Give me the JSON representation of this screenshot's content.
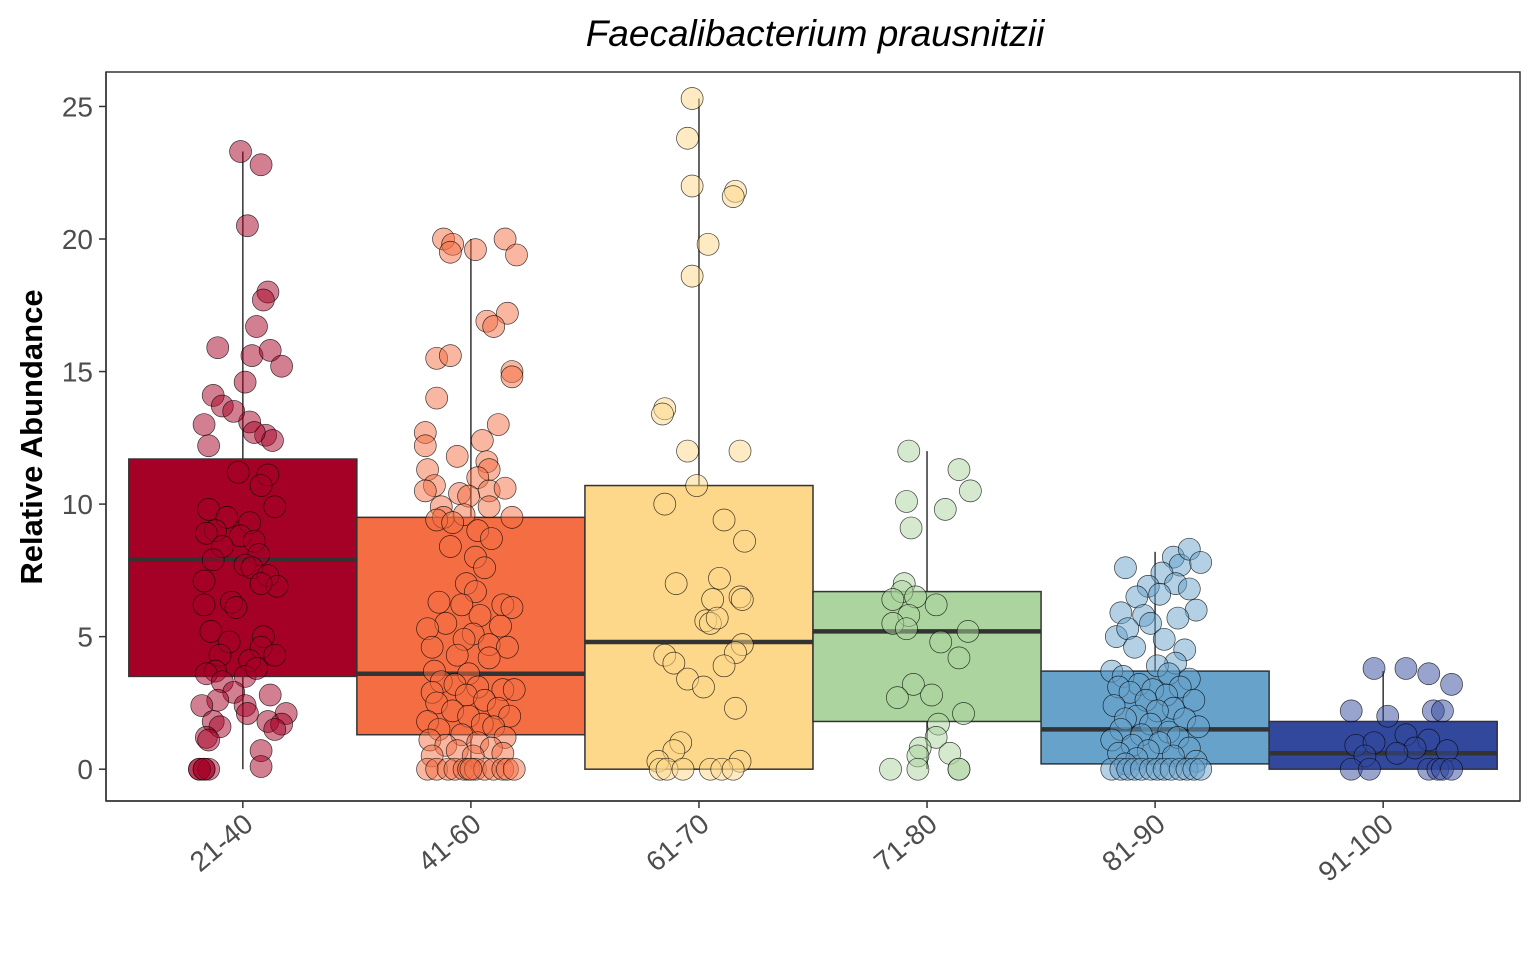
{
  "chart_data": {
    "type": "boxplot",
    "title": "Faecalibacterium prausnitzii",
    "xlabel": "",
    "ylabel": "Relative Abundance",
    "ylim": [
      -1.2,
      26.3
    ],
    "yticks": [
      0,
      5,
      10,
      15,
      20,
      25
    ],
    "grid": false,
    "legend": "none",
    "categories": [
      "21-40",
      "41-60",
      "61-70",
      "71-80",
      "81-90",
      "91-100"
    ],
    "colors": [
      "#a50026",
      "#f46d43",
      "#fdd78a",
      "#abd49e",
      "#67a2cb",
      "#32489d"
    ],
    "boxes": [
      {
        "q1": 3.5,
        "median": 7.9,
        "q3": 11.7,
        "whisker_low": 0.0,
        "whisker_high": 23.3
      },
      {
        "q1": 1.3,
        "median": 3.6,
        "q3": 9.5,
        "whisker_low": 0.0,
        "whisker_high": 20.0
      },
      {
        "q1": 0.0,
        "median": 4.8,
        "q3": 10.7,
        "whisker_low": 0.0,
        "whisker_high": 25.3
      },
      {
        "q1": 1.8,
        "median": 5.2,
        "q3": 6.7,
        "whisker_low": 0.0,
        "whisker_high": 12.0
      },
      {
        "q1": 0.2,
        "median": 1.5,
        "q3": 3.7,
        "whisker_low": 0.0,
        "whisker_high": 8.2
      },
      {
        "q1": 0.0,
        "median": 0.6,
        "q3": 1.8,
        "whisker_low": 0.0,
        "whisker_high": 3.7
      }
    ],
    "points": [
      [
        [
          -0.01,
          23.3
        ],
        [
          0.08,
          22.8
        ],
        [
          0.02,
          20.5
        ],
        [
          0.11,
          18.0
        ],
        [
          0.09,
          17.7
        ],
        [
          0.06,
          16.7
        ],
        [
          -0.11,
          15.9
        ],
        [
          0.04,
          15.6
        ],
        [
          0.12,
          15.8
        ],
        [
          0.17,
          15.2
        ],
        [
          -0.13,
          14.1
        ],
        [
          -0.09,
          13.7
        ],
        [
          0.01,
          14.6
        ],
        [
          0.03,
          13.1
        ],
        [
          0.1,
          12.6
        ],
        [
          0.13,
          12.4
        ],
        [
          -0.17,
          13.0
        ],
        [
          -0.15,
          12.2
        ],
        [
          0.05,
          12.7
        ],
        [
          -0.04,
          13.5
        ],
        [
          -0.02,
          11.2
        ],
        [
          0.11,
          11.1
        ],
        [
          0.08,
          10.7
        ],
        [
          -0.15,
          9.8
        ],
        [
          -0.07,
          9.5
        ],
        [
          0.03,
          9.3
        ],
        [
          0.14,
          9.9
        ],
        [
          -0.12,
          9.0
        ],
        [
          -0.01,
          8.8
        ],
        [
          0.05,
          8.6
        ],
        [
          -0.16,
          8.9
        ],
        [
          -0.09,
          8.4
        ],
        [
          0.07,
          8.1
        ],
        [
          -0.13,
          7.9
        ],
        [
          0.01,
          7.7
        ],
        [
          0.04,
          7.6
        ],
        [
          0.11,
          7.3
        ],
        [
          -0.17,
          7.1
        ],
        [
          0.15,
          6.9
        ],
        [
          0.08,
          7.0
        ],
        [
          -0.05,
          6.3
        ],
        [
          -0.17,
          6.2
        ],
        [
          -0.03,
          6.1
        ],
        [
          -0.14,
          5.2
        ],
        [
          0.09,
          5.0
        ],
        [
          -0.06,
          4.8
        ],
        [
          0.08,
          4.6
        ],
        [
          -0.1,
          4.3
        ],
        [
          0.03,
          4.1
        ],
        [
          0.14,
          4.3
        ],
        [
          -0.12,
          3.7
        ],
        [
          0.01,
          3.5
        ],
        [
          0.06,
          3.8
        ],
        [
          -0.16,
          3.6
        ],
        [
          -0.09,
          3.3
        ],
        [
          0.12,
          2.8
        ],
        [
          -0.04,
          2.9
        ],
        [
          -0.11,
          2.6
        ],
        [
          0.01,
          2.4
        ],
        [
          -0.18,
          2.4
        ],
        [
          0.19,
          2.1
        ],
        [
          0.02,
          2.1
        ],
        [
          -0.13,
          1.8
        ],
        [
          0.11,
          1.8
        ],
        [
          0.17,
          1.7
        ],
        [
          -0.1,
          1.6
        ],
        [
          0.14,
          1.5
        ],
        [
          -0.16,
          1.2
        ],
        [
          -0.15,
          1.1
        ],
        [
          0.08,
          0.7
        ],
        [
          -0.19,
          0.0
        ],
        [
          -0.17,
          0.0
        ],
        [
          -0.15,
          0.0
        ],
        [
          -0.19,
          0.0
        ],
        [
          -0.17,
          0.0
        ],
        [
          0.08,
          0.1
        ]
      ],
      [
        [
          -0.12,
          20.0
        ],
        [
          -0.08,
          19.8
        ],
        [
          -0.09,
          19.5
        ],
        [
          0.15,
          20.0
        ],
        [
          0.2,
          19.4
        ],
        [
          0.02,
          19.6
        ],
        [
          0.16,
          17.2
        ],
        [
          0.07,
          16.9
        ],
        [
          0.1,
          16.7
        ],
        [
          0.18,
          15.0
        ],
        [
          -0.15,
          15.5
        ],
        [
          -0.09,
          15.6
        ],
        [
          0.18,
          14.8
        ],
        [
          -0.15,
          14.0
        ],
        [
          0.12,
          13.0
        ],
        [
          -0.2,
          12.7
        ],
        [
          -0.2,
          12.2
        ],
        [
          0.05,
          12.4
        ],
        [
          -0.06,
          11.8
        ],
        [
          0.07,
          11.6
        ],
        [
          0.08,
          11.3
        ],
        [
          -0.19,
          11.3
        ],
        [
          0.03,
          11.0
        ],
        [
          -0.16,
          10.7
        ],
        [
          -0.2,
          10.5
        ],
        [
          0.08,
          10.5
        ],
        [
          -0.05,
          10.4
        ],
        [
          -0.01,
          10.3
        ],
        [
          0.15,
          10.6
        ],
        [
          -0.13,
          9.9
        ],
        [
          0.08,
          9.9
        ],
        [
          -0.12,
          9.5
        ],
        [
          -0.15,
          9.4
        ],
        [
          -0.03,
          9.6
        ],
        [
          0.18,
          9.5
        ],
        [
          -0.08,
          9.3
        ],
        [
          0.03,
          9.0
        ],
        [
          0.09,
          8.7
        ],
        [
          -0.09,
          8.4
        ],
        [
          0.02,
          8.0
        ],
        [
          0.06,
          7.6
        ],
        [
          -0.02,
          7.0
        ],
        [
          0.02,
          6.7
        ],
        [
          0.14,
          6.2
        ],
        [
          0.18,
          6.1
        ],
        [
          -0.14,
          6.3
        ],
        [
          -0.04,
          6.2
        ],
        [
          0.04,
          5.8
        ],
        [
          -0.11,
          5.5
        ],
        [
          -0.19,
          5.3
        ],
        [
          0.13,
          5.4
        ],
        [
          0.01,
          5.1
        ],
        [
          -0.03,
          4.9
        ],
        [
          0.08,
          4.7
        ],
        [
          -0.17,
          4.6
        ],
        [
          0.16,
          4.6
        ],
        [
          -0.06,
          4.3
        ],
        [
          0.08,
          4.2
        ],
        [
          -0.16,
          3.7
        ],
        [
          -0.01,
          3.6
        ],
        [
          -0.13,
          3.3
        ],
        [
          0.14,
          3.0
        ],
        [
          -0.07,
          3.2
        ],
        [
          0.03,
          3.1
        ],
        [
          0.19,
          3.0
        ],
        [
          -0.17,
          2.9
        ],
        [
          -0.02,
          2.8
        ],
        [
          0.06,
          2.6
        ],
        [
          -0.15,
          2.5
        ],
        [
          0.12,
          2.3
        ],
        [
          -0.08,
          2.2
        ],
        [
          0.17,
          2.0
        ],
        [
          -0.01,
          2.0
        ],
        [
          -0.19,
          1.8
        ],
        [
          0.05,
          1.7
        ],
        [
          0.1,
          1.6
        ],
        [
          -0.14,
          1.5
        ],
        [
          -0.04,
          1.3
        ],
        [
          0.15,
          1.2
        ],
        [
          -0.18,
          1.1
        ],
        [
          0.03,
          1.0
        ],
        [
          -0.11,
          0.9
        ],
        [
          0.09,
          0.8
        ],
        [
          -0.06,
          0.7
        ],
        [
          0.14,
          0.6
        ],
        [
          -0.17,
          0.5
        ],
        [
          0.01,
          0.5
        ],
        [
          -0.19,
          0.0
        ],
        [
          -0.15,
          0.0
        ],
        [
          -0.1,
          0.0
        ],
        [
          -0.07,
          0.0
        ],
        [
          -0.03,
          0.0
        ],
        [
          -0.01,
          0.0
        ],
        [
          0.02,
          0.0
        ],
        [
          0.06,
          0.0
        ],
        [
          0.1,
          0.0
        ],
        [
          0.14,
          0.0
        ],
        [
          0.16,
          0.0
        ],
        [
          0.19,
          0.0
        ],
        [
          0.0,
          0.0
        ]
      ],
      [
        [
          -0.03,
          25.3
        ],
        [
          -0.05,
          23.8
        ],
        [
          -0.03,
          22.0
        ],
        [
          0.16,
          21.8
        ],
        [
          0.15,
          21.6
        ],
        [
          0.04,
          19.8
        ],
        [
          -0.03,
          18.6
        ],
        [
          -0.15,
          13.6
        ],
        [
          -0.16,
          13.4
        ],
        [
          -0.05,
          12.0
        ],
        [
          0.18,
          12.0
        ],
        [
          -0.01,
          10.7
        ],
        [
          -0.15,
          10.0
        ],
        [
          0.11,
          9.4
        ],
        [
          0.2,
          8.6
        ],
        [
          -0.1,
          7.0
        ],
        [
          0.09,
          7.2
        ],
        [
          0.06,
          6.4
        ],
        [
          0.18,
          6.5
        ],
        [
          0.19,
          6.4
        ],
        [
          0.03,
          5.6
        ],
        [
          0.05,
          5.5
        ],
        [
          0.08,
          5.7
        ],
        [
          0.19,
          4.7
        ],
        [
          0.16,
          4.4
        ],
        [
          -0.15,
          4.3
        ],
        [
          -0.11,
          4.0
        ],
        [
          0.11,
          3.9
        ],
        [
          -0.05,
          3.4
        ],
        [
          0.02,
          3.1
        ],
        [
          0.16,
          2.3
        ],
        [
          -0.08,
          1.0
        ],
        [
          -0.11,
          0.7
        ],
        [
          0.18,
          0.3
        ],
        [
          -0.18,
          0.3
        ],
        [
          -0.17,
          0.0
        ],
        [
          -0.14,
          0.0
        ],
        [
          -0.07,
          0.0
        ],
        [
          0.05,
          0.0
        ],
        [
          0.1,
          0.0
        ],
        [
          0.15,
          0.0
        ]
      ],
      [
        [
          -0.08,
          12.0
        ],
        [
          0.14,
          11.3
        ],
        [
          0.19,
          10.5
        ],
        [
          -0.09,
          10.1
        ],
        [
          0.08,
          9.8
        ],
        [
          -0.07,
          9.1
        ],
        [
          -0.1,
          7.0
        ],
        [
          -0.11,
          6.7
        ],
        [
          -0.15,
          6.4
        ],
        [
          -0.05,
          6.5
        ],
        [
          0.04,
          6.2
        ],
        [
          -0.08,
          5.8
        ],
        [
          -0.15,
          5.5
        ],
        [
          -0.09,
          5.3
        ],
        [
          0.18,
          5.2
        ],
        [
          0.06,
          4.8
        ],
        [
          0.14,
          4.2
        ],
        [
          -0.06,
          3.2
        ],
        [
          -0.13,
          2.7
        ],
        [
          0.02,
          2.8
        ],
        [
          0.16,
          2.1
        ],
        [
          0.05,
          1.7
        ],
        [
          0.04,
          1.2
        ],
        [
          -0.03,
          0.8
        ],
        [
          0.1,
          0.6
        ],
        [
          -0.04,
          0.5
        ],
        [
          -0.16,
          0.0
        ],
        [
          -0.04,
          0.0
        ],
        [
          0.14,
          0.0
        ],
        [
          0.14,
          0.0
        ]
      ],
      [
        [
          -0.13,
          7.6
        ],
        [
          0.08,
          8.0
        ],
        [
          0.11,
          7.7
        ],
        [
          0.15,
          8.3
        ],
        [
          0.2,
          7.8
        ],
        [
          0.03,
          7.4
        ],
        [
          0.09,
          7.0
        ],
        [
          -0.03,
          6.9
        ],
        [
          0.15,
          6.8
        ],
        [
          -0.08,
          6.5
        ],
        [
          0.02,
          6.6
        ],
        [
          -0.15,
          5.9
        ],
        [
          0.18,
          6.0
        ],
        [
          -0.05,
          5.8
        ],
        [
          0.1,
          5.7
        ],
        [
          -0.17,
          5.0
        ],
        [
          -0.12,
          5.3
        ],
        [
          -0.02,
          5.5
        ],
        [
          0.04,
          4.9
        ],
        [
          0.13,
          4.5
        ],
        [
          -0.09,
          4.6
        ],
        [
          -0.19,
          3.7
        ],
        [
          0.09,
          4.0
        ],
        [
          0.01,
          3.9
        ],
        [
          -0.14,
          3.5
        ],
        [
          0.06,
          3.6
        ],
        [
          0.15,
          3.4
        ],
        [
          -0.07,
          3.2
        ],
        [
          -0.16,
          3.1
        ],
        [
          -0.01,
          3.0
        ],
        [
          0.11,
          3.1
        ],
        [
          -0.11,
          2.9
        ],
        [
          0.05,
          2.8
        ],
        [
          -0.04,
          2.6
        ],
        [
          0.17,
          2.6
        ],
        [
          -0.18,
          2.4
        ],
        [
          0.08,
          2.3
        ],
        [
          0.01,
          2.2
        ],
        [
          -0.08,
          2.0
        ],
        [
          -0.13,
          1.9
        ],
        [
          0.13,
          1.9
        ],
        [
          -0.02,
          1.7
        ],
        [
          0.19,
          1.6
        ],
        [
          -0.15,
          1.5
        ],
        [
          0.06,
          1.4
        ],
        [
          -0.06,
          1.3
        ],
        [
          0.1,
          1.2
        ],
        [
          -0.19,
          1.1
        ],
        [
          0.02,
          1.0
        ],
        [
          -0.1,
          0.9
        ],
        [
          0.15,
          0.8
        ],
        [
          -0.03,
          0.7
        ],
        [
          -0.16,
          0.6
        ],
        [
          0.08,
          0.5
        ],
        [
          -0.08,
          0.4
        ],
        [
          0.18,
          0.3
        ],
        [
          -0.13,
          0.2
        ],
        [
          -0.19,
          0.0
        ],
        [
          -0.15,
          0.0
        ],
        [
          -0.12,
          0.0
        ],
        [
          -0.09,
          0.0
        ],
        [
          -0.06,
          0.0
        ],
        [
          -0.02,
          0.0
        ],
        [
          0.01,
          0.0
        ],
        [
          0.04,
          0.0
        ],
        [
          0.07,
          0.0
        ],
        [
          0.11,
          0.0
        ],
        [
          0.14,
          0.0
        ],
        [
          0.17,
          0.0
        ],
        [
          0.2,
          0.0
        ]
      ],
      [
        [
          0.1,
          3.8
        ],
        [
          0.2,
          3.6
        ],
        [
          -0.04,
          3.8
        ],
        [
          0.3,
          3.2
        ],
        [
          -0.14,
          2.2
        ],
        [
          0.02,
          2.0
        ],
        [
          0.22,
          2.2
        ],
        [
          0.26,
          2.2
        ],
        [
          0.1,
          1.3
        ],
        [
          0.2,
          1.1
        ],
        [
          -0.12,
          0.9
        ],
        [
          -0.04,
          1.0
        ],
        [
          0.14,
          0.8
        ],
        [
          0.28,
          0.7
        ],
        [
          0.06,
          0.6
        ],
        [
          -0.08,
          0.5
        ],
        [
          -0.14,
          0.0
        ],
        [
          -0.06,
          0.0
        ],
        [
          0.2,
          0.0
        ],
        [
          0.24,
          0.0
        ],
        [
          0.26,
          0.0
        ],
        [
          0.3,
          0.0
        ]
      ]
    ]
  }
}
